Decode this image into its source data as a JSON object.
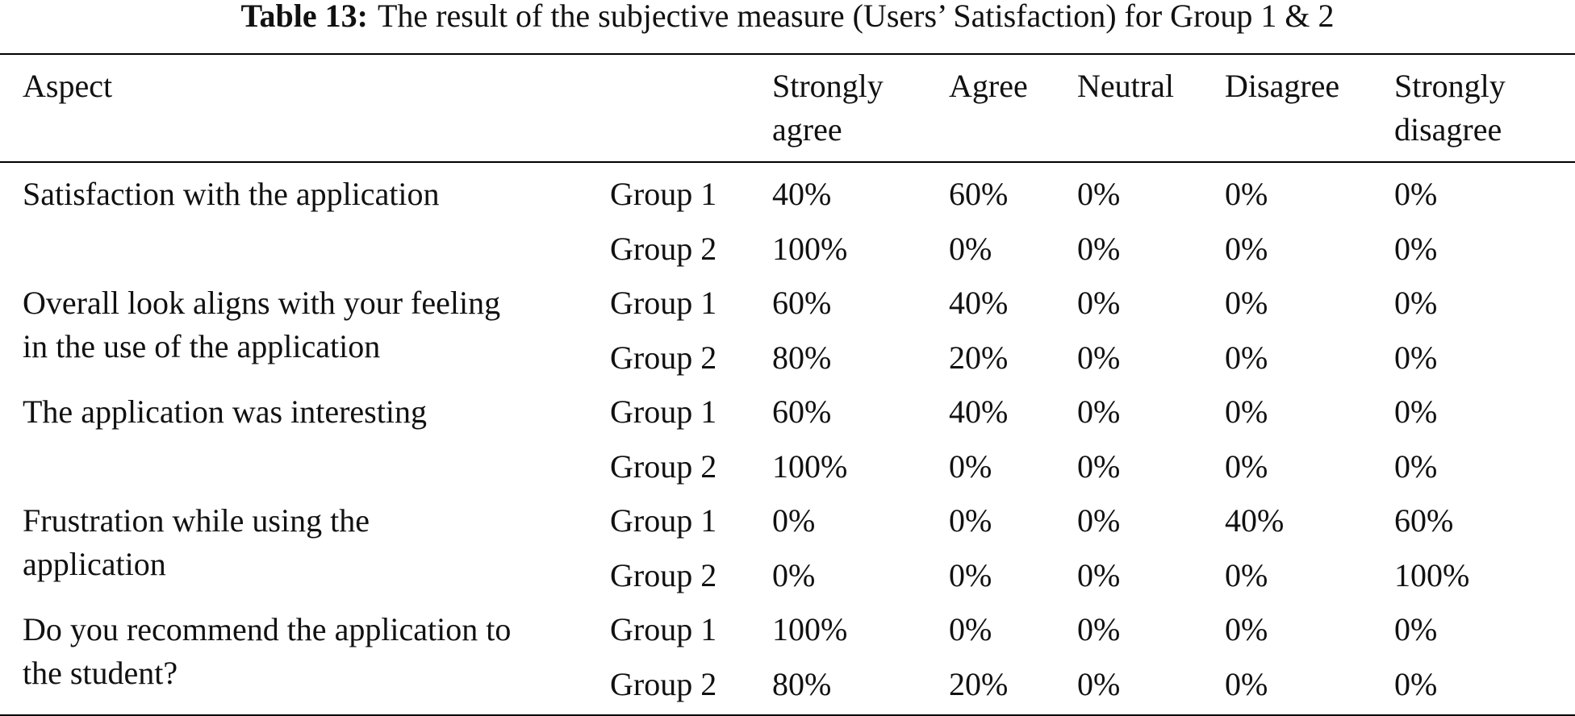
{
  "caption": {
    "label": "Table 13:",
    "text": "The result of the subjective measure (Users’ Satisfaction) for Group 1 & 2"
  },
  "headers": {
    "aspect": "Aspect",
    "strongly_agree": [
      "Strongly",
      "agree"
    ],
    "agree": "Agree",
    "neutral": "Neutral",
    "disagree": "Disagree",
    "strongly_disagree": [
      "Strongly",
      "disagree"
    ]
  },
  "aspects": [
    {
      "lines": [
        "Satisfaction with the application"
      ]
    },
    {
      "lines": [
        "Overall look aligns with your feeling",
        "in the use of the application"
      ]
    },
    {
      "lines": [
        "The application was interesting"
      ]
    },
    {
      "lines": [
        "Frustration while using the",
        "application"
      ]
    },
    {
      "lines": [
        "Do you recommend the application to",
        "the student?"
      ]
    }
  ],
  "rows": [
    {
      "group": "Group 1",
      "values": [
        "40%",
        "60%",
        "0%",
        "0%",
        "0%"
      ]
    },
    {
      "group": "Group 2",
      "values": [
        "100%",
        "0%",
        "0%",
        "0%",
        "0%"
      ]
    },
    {
      "group": "Group 1",
      "values": [
        "60%",
        "40%",
        "0%",
        "0%",
        "0%"
      ]
    },
    {
      "group": "Group 2",
      "values": [
        "80%",
        "20%",
        "0%",
        "0%",
        "0%"
      ]
    },
    {
      "group": "Group 1",
      "values": [
        "60%",
        "40%",
        "0%",
        "0%",
        "0%"
      ]
    },
    {
      "group": "Group 2",
      "values": [
        "100%",
        "0%",
        "0%",
        "0%",
        "0%"
      ]
    },
    {
      "group": "Group 1",
      "values": [
        "0%",
        "0%",
        "0%",
        "40%",
        "60%"
      ]
    },
    {
      "group": "Group 2",
      "values": [
        "0%",
        "0%",
        "0%",
        "0%",
        "100%"
      ]
    },
    {
      "group": "Group 1",
      "values": [
        "100%",
        "0%",
        "0%",
        "0%",
        "0%"
      ]
    },
    {
      "group": "Group 2",
      "values": [
        "80%",
        "20%",
        "0%",
        "0%",
        "0%"
      ]
    }
  ]
}
